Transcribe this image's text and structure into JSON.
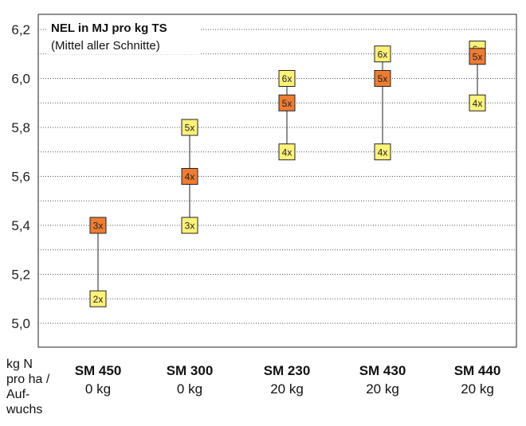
{
  "chart_data": {
    "type": "range-dot",
    "title": "NEL in MJ pro kg TS",
    "subtitle": "(Mittel aller Schnitte)",
    "ylabel": "",
    "ylim": [
      4.9,
      6.25
    ],
    "yticks": [
      "6,2",
      "6,0",
      "5,8",
      "5,6",
      "5,4",
      "5,2",
      "5,0"
    ],
    "ytick_values": [
      6.2,
      6.0,
      5.8,
      5.6,
      5.4,
      5.2,
      5.0
    ],
    "grid": true,
    "xaxis_note": [
      "kg N",
      "pro ha /",
      "Auf-",
      "wuchs"
    ],
    "categories": [
      {
        "name": "SM 450",
        "dose": "0 kg",
        "points": [
          {
            "label": "3x",
            "value": 5.4,
            "color": "orange"
          },
          {
            "label": "2x",
            "value": 5.1,
            "color": "yellow"
          }
        ]
      },
      {
        "name": "SM 300",
        "dose": "0 kg",
        "points": [
          {
            "label": "5x",
            "value": 5.8,
            "color": "yellow"
          },
          {
            "label": "4x",
            "value": 5.6,
            "color": "orange"
          },
          {
            "label": "3x",
            "value": 5.4,
            "color": "yellow"
          }
        ]
      },
      {
        "name": "SM 230",
        "dose": "20 kg",
        "points": [
          {
            "label": "6x",
            "value": 6.0,
            "color": "yellow"
          },
          {
            "label": "5x",
            "value": 5.9,
            "color": "orange"
          },
          {
            "label": "4x",
            "value": 5.7,
            "color": "yellow"
          }
        ]
      },
      {
        "name": "SM 430",
        "dose": "20 kg",
        "points": [
          {
            "label": "6x",
            "value": 6.1,
            "color": "yellow"
          },
          {
            "label": "5x",
            "value": 6.0,
            "color": "orange"
          },
          {
            "label": "4x",
            "value": 5.7,
            "color": "yellow"
          }
        ]
      },
      {
        "name": "SM 440",
        "dose": "20 kg",
        "points": [
          {
            "label": "6x",
            "value": 6.12,
            "color": "yellow"
          },
          {
            "label": "5x",
            "value": 6.09,
            "color": "orange"
          },
          {
            "label": "4x",
            "value": 5.9,
            "color": "yellow"
          }
        ]
      }
    ],
    "colors": {
      "yellow": "#fff27a",
      "orange": "#ee7d33",
      "border": "#222222",
      "grid": "#555555"
    }
  }
}
